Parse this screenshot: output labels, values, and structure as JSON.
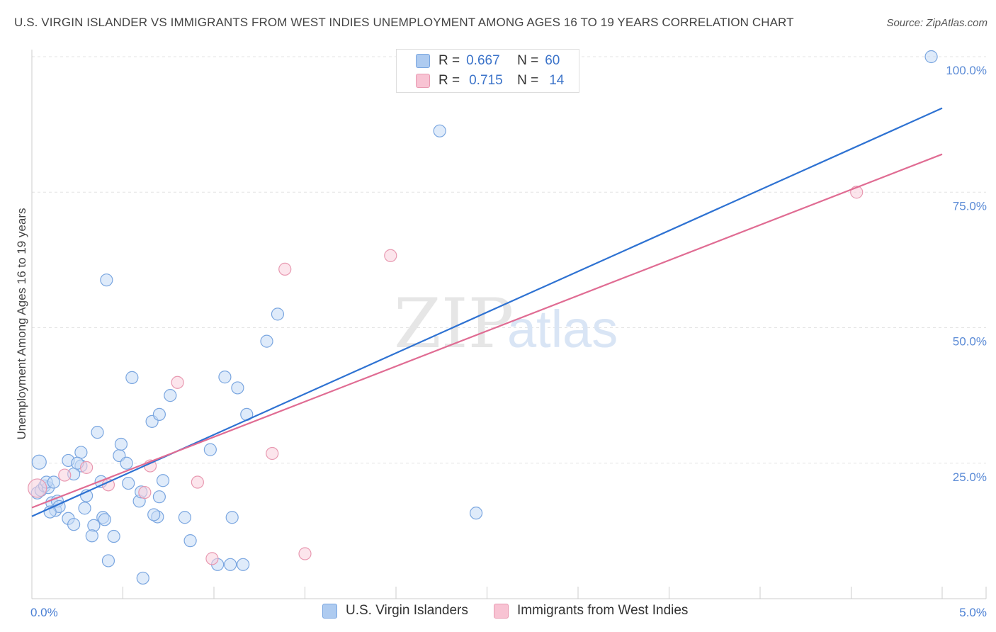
{
  "title": "U.S. VIRGIN ISLANDER VS IMMIGRANTS FROM WEST INDIES UNEMPLOYMENT AMONG AGES 16 TO 19 YEARS CORRELATION CHART",
  "source": "Source: ZipAtlas.com",
  "watermark": {
    "zip": "ZIP",
    "atlas": "atlas"
  },
  "legend": {
    "rows": [
      {
        "r_label": "R =",
        "r_value": "0.667",
        "n_label": "N =",
        "n_value": "60",
        "color": "#aecbf0",
        "border": "#7aa6e0"
      },
      {
        "r_label": "R =",
        "r_value": "0.715",
        "n_label": "N =",
        "n_value": "14",
        "color": "#f8c3d3",
        "border": "#e899b1"
      }
    ]
  },
  "bottom_legend": [
    {
      "label": "U.S. Virgin Islanders",
      "color": "#aecbf0",
      "border": "#7aa6e0"
    },
    {
      "label": "Immigrants from West Indies",
      "color": "#f8c3d3",
      "border": "#e899b1"
    }
  ],
  "chart_data": {
    "type": "scatter",
    "title": "U.S. VIRGIN ISLANDER VS IMMIGRANTS FROM WEST INDIES UNEMPLOYMENT AMONG AGES 16 TO 19 YEARS CORRELATION CHART",
    "xlabel": "",
    "ylabel": "Unemployment Among Ages 16 to 19 years",
    "xlim": [
      0,
      5
    ],
    "ylim": [
      0,
      100
    ],
    "x_tick_labels": [
      {
        "value": 0,
        "label": "0.0%"
      },
      {
        "value": 5,
        "label": "5.0%"
      }
    ],
    "y_tick_labels": [
      {
        "value": 25,
        "label": "25.0%"
      },
      {
        "value": 50,
        "label": "50.0%"
      },
      {
        "value": 75,
        "label": "75.0%"
      },
      {
        "value": 100,
        "label": "100.0%"
      }
    ],
    "grid": true,
    "series": [
      {
        "name": "U.S. Virgin Islanders",
        "color": "#7aa6e0",
        "fill": "#c5dbf5",
        "line_color": "#2e72d2",
        "trend": {
          "x0": 0,
          "y0": 15.2,
          "x1": 5,
          "y1": 90.5
        },
        "points": [
          [
            0.04,
            25.2
          ],
          [
            0.03,
            19.5
          ],
          [
            0.05,
            20.0
          ],
          [
            0.07,
            20.8
          ],
          [
            0.09,
            20.5
          ],
          [
            0.08,
            21.5
          ],
          [
            0.11,
            17.7
          ],
          [
            0.12,
            21.5
          ],
          [
            0.13,
            16.3
          ],
          [
            0.14,
            18.0
          ],
          [
            0.15,
            17.0
          ],
          [
            0.1,
            16.0
          ],
          [
            0.2,
            25.5
          ],
          [
            0.27,
            24.5
          ],
          [
            0.23,
            23.0
          ],
          [
            0.27,
            27.0
          ],
          [
            0.25,
            25.0
          ],
          [
            0.3,
            19.0
          ],
          [
            0.29,
            16.7
          ],
          [
            0.2,
            14.8
          ],
          [
            0.23,
            13.7
          ],
          [
            0.34,
            13.5
          ],
          [
            0.39,
            15.0
          ],
          [
            0.4,
            14.6
          ],
          [
            0.33,
            11.6
          ],
          [
            0.45,
            11.5
          ],
          [
            0.42,
            7.0
          ],
          [
            0.38,
            21.6
          ],
          [
            0.36,
            30.7
          ],
          [
            0.48,
            26.4
          ],
          [
            0.49,
            28.5
          ],
          [
            0.52,
            25.0
          ],
          [
            0.53,
            21.3
          ],
          [
            0.59,
            18.0
          ],
          [
            0.6,
            19.7
          ],
          [
            0.55,
            40.8
          ],
          [
            0.41,
            58.8
          ],
          [
            0.66,
            32.7
          ],
          [
            0.7,
            34.0
          ],
          [
            0.76,
            37.5
          ],
          [
            0.69,
            15.1
          ],
          [
            0.67,
            15.5
          ],
          [
            0.72,
            21.8
          ],
          [
            0.7,
            18.8
          ],
          [
            0.84,
            15.0
          ],
          [
            0.87,
            10.7
          ],
          [
            0.61,
            3.8
          ],
          [
            0.98,
            27.5
          ],
          [
            1.02,
            6.3
          ],
          [
            1.06,
            40.9
          ],
          [
            1.1,
            15.0
          ],
          [
            1.16,
            6.3
          ],
          [
            1.09,
            6.3
          ],
          [
            1.13,
            38.9
          ],
          [
            1.18,
            34.0
          ],
          [
            1.29,
            47.5
          ],
          [
            1.35,
            52.5
          ],
          [
            2.24,
            86.3
          ],
          [
            2.44,
            15.8
          ],
          [
            4.94,
            100.0
          ]
        ]
      },
      {
        "name": "Immigrants from West Indies",
        "color": "#e899b1",
        "fill": "#f9d0dc",
        "line_color": "#e06c93",
        "trend": {
          "x0": 0,
          "y0": 16.8,
          "x1": 5,
          "y1": 82.0
        },
        "points": [
          [
            0.03,
            20.4
          ],
          [
            0.18,
            22.8
          ],
          [
            0.3,
            24.2
          ],
          [
            0.42,
            21.0
          ],
          [
            0.62,
            19.6
          ],
          [
            0.65,
            24.5
          ],
          [
            0.8,
            39.9
          ],
          [
            0.91,
            21.5
          ],
          [
            0.99,
            7.4
          ],
          [
            1.32,
            26.8
          ],
          [
            1.39,
            60.8
          ],
          [
            1.5,
            8.3
          ],
          [
            1.97,
            63.3
          ],
          [
            4.53,
            75.0
          ]
        ]
      }
    ]
  }
}
